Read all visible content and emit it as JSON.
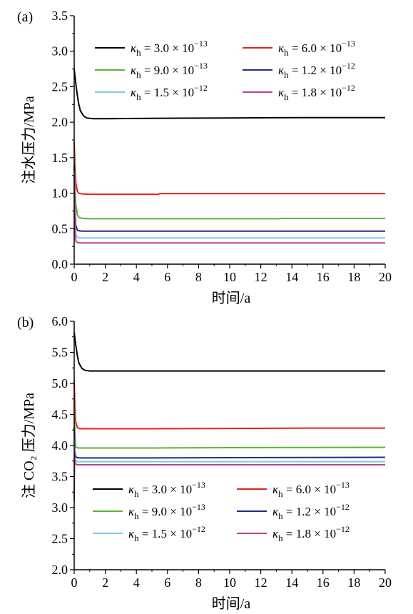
{
  "chart_data": [
    {
      "type": "line",
      "panel_label": "(a)",
      "xlabel": "时间/a",
      "ylabel": "注水压力/MPa",
      "xlim": [
        0,
        20
      ],
      "ylim": [
        0.0,
        3.5
      ],
      "xticks": [
        "0",
        "2",
        "4",
        "6",
        "8",
        "10",
        "12",
        "14",
        "16",
        "18",
        "20"
      ],
      "yticks": [
        "0.0",
        "0.5",
        "1.0",
        "1.5",
        "2.0",
        "2.5",
        "3.0",
        "3.5"
      ],
      "legend_position": "top",
      "grid": false,
      "series": [
        {
          "name": "κh = 3.0 × 10−13",
          "color": "#000000",
          "x": [
            0,
            0.1,
            0.2,
            0.3,
            0.4,
            0.6,
            0.8,
            1.2,
            2,
            5,
            10,
            15,
            20
          ],
          "y": [
            2.75,
            2.55,
            2.38,
            2.25,
            2.16,
            2.09,
            2.06,
            2.05,
            2.05,
            2.055,
            2.06,
            2.065,
            2.065
          ]
        },
        {
          "name": "κh = 6.0 × 10−13",
          "color": "#e8211b",
          "x": [
            0,
            0.05,
            0.1,
            0.2,
            0.3,
            0.5,
            1,
            2,
            5.4,
            5.5,
            10,
            15,
            20
          ],
          "y": [
            1.72,
            1.4,
            1.15,
            1.03,
            1.0,
            0.99,
            0.985,
            0.985,
            0.985,
            0.995,
            0.995,
            0.995,
            0.995
          ]
        },
        {
          "name": "κh = 9.0 × 10−13",
          "color": "#5bb432",
          "x": [
            0,
            0.05,
            0.1,
            0.2,
            0.3,
            0.5,
            1,
            2,
            5,
            10,
            13.2,
            13.3,
            20
          ],
          "y": [
            1.55,
            1.1,
            0.85,
            0.7,
            0.66,
            0.645,
            0.64,
            0.64,
            0.64,
            0.64,
            0.64,
            0.645,
            0.645
          ]
        },
        {
          "name": "κh = 1.2 × 10−12",
          "color": "#1f2a8c",
          "x": [
            0,
            0.05,
            0.1,
            0.2,
            0.3,
            0.5,
            1,
            5,
            10,
            20
          ],
          "y": [
            1.4,
            0.8,
            0.55,
            0.48,
            0.47,
            0.465,
            0.465,
            0.465,
            0.465,
            0.465
          ]
        },
        {
          "name": "κh = 1.5 × 10−12",
          "color": "#7fc8e8",
          "x": [
            0,
            0.05,
            0.1,
            0.2,
            0.3,
            0.5,
            1,
            5,
            10,
            20
          ],
          "y": [
            1.3,
            0.6,
            0.42,
            0.38,
            0.37,
            0.37,
            0.37,
            0.37,
            0.37,
            0.37
          ]
        },
        {
          "name": "κh = 1.8 × 10−12",
          "color": "#b8458f",
          "x": [
            0,
            0.05,
            0.1,
            0.2,
            0.3,
            0.5,
            1,
            5,
            10,
            20
          ],
          "y": [
            1.25,
            0.5,
            0.33,
            0.305,
            0.3,
            0.3,
            0.3,
            0.3,
            0.3,
            0.3
          ]
        }
      ]
    },
    {
      "type": "line",
      "panel_label": "(b)",
      "xlabel": "时间/a",
      "ylabel": "注 CO₂ 压力/MPa",
      "xlim": [
        0,
        20
      ],
      "ylim": [
        2.0,
        6.0
      ],
      "xticks": [
        "0",
        "2",
        "4",
        "6",
        "8",
        "10",
        "12",
        "14",
        "16",
        "18",
        "20"
      ],
      "yticks": [
        "2.0",
        "2.5",
        "3.0",
        "3.5",
        "4.0",
        "4.5",
        "5.0",
        "5.5",
        "6.0"
      ],
      "legend_position": "bottom",
      "grid": false,
      "series": [
        {
          "name": "κh = 3.0 × 10−13",
          "color": "#000000",
          "x": [
            0,
            0.1,
            0.2,
            0.3,
            0.5,
            0.7,
            1,
            2,
            5,
            10,
            15,
            20
          ],
          "y": [
            5.82,
            5.62,
            5.45,
            5.33,
            5.24,
            5.21,
            5.2,
            5.2,
            5.2,
            5.2,
            5.2,
            5.2
          ]
        },
        {
          "name": "κh = 6.0 × 10−13",
          "color": "#e8211b",
          "x": [
            0,
            0.05,
            0.1,
            0.2,
            0.3,
            0.5,
            1,
            2,
            5,
            10,
            15,
            20
          ],
          "y": [
            5.05,
            4.6,
            4.38,
            4.29,
            4.275,
            4.27,
            4.27,
            4.27,
            4.27,
            4.275,
            4.28,
            4.28
          ]
        },
        {
          "name": "κh = 9.0 × 10−13",
          "color": "#5bb432",
          "x": [
            0,
            0.05,
            0.1,
            0.2,
            0.3,
            0.5,
            1,
            5,
            10,
            20
          ],
          "y": [
            4.7,
            4.1,
            3.98,
            3.965,
            3.96,
            3.96,
            3.96,
            3.96,
            3.965,
            3.97
          ]
        },
        {
          "name": "κh = 1.2 × 10−12",
          "color": "#1f2a8c",
          "x": [
            0,
            0.05,
            0.1,
            0.2,
            0.3,
            0.5,
            1,
            5,
            10,
            20
          ],
          "y": [
            4.3,
            3.9,
            3.82,
            3.805,
            3.8,
            3.8,
            3.8,
            3.8,
            3.805,
            3.81
          ]
        },
        {
          "name": "κh = 1.5 × 10−12",
          "color": "#7fc8e8",
          "x": [
            0,
            0.05,
            0.1,
            0.2,
            0.3,
            0.5,
            1,
            5,
            10,
            20
          ],
          "y": [
            4.1,
            3.8,
            3.745,
            3.74,
            3.74,
            3.74,
            3.74,
            3.74,
            3.74,
            3.74
          ]
        },
        {
          "name": "κh = 1.8 × 10−12",
          "color": "#b8458f",
          "x": [
            0,
            0.03,
            0.05,
            0.1,
            0.2,
            0.3,
            0.5,
            1,
            5,
            10,
            20
          ],
          "y": [
            3.1,
            3.9,
            3.75,
            3.7,
            3.69,
            3.69,
            3.69,
            3.69,
            3.69,
            3.69,
            3.69
          ]
        }
      ]
    }
  ]
}
